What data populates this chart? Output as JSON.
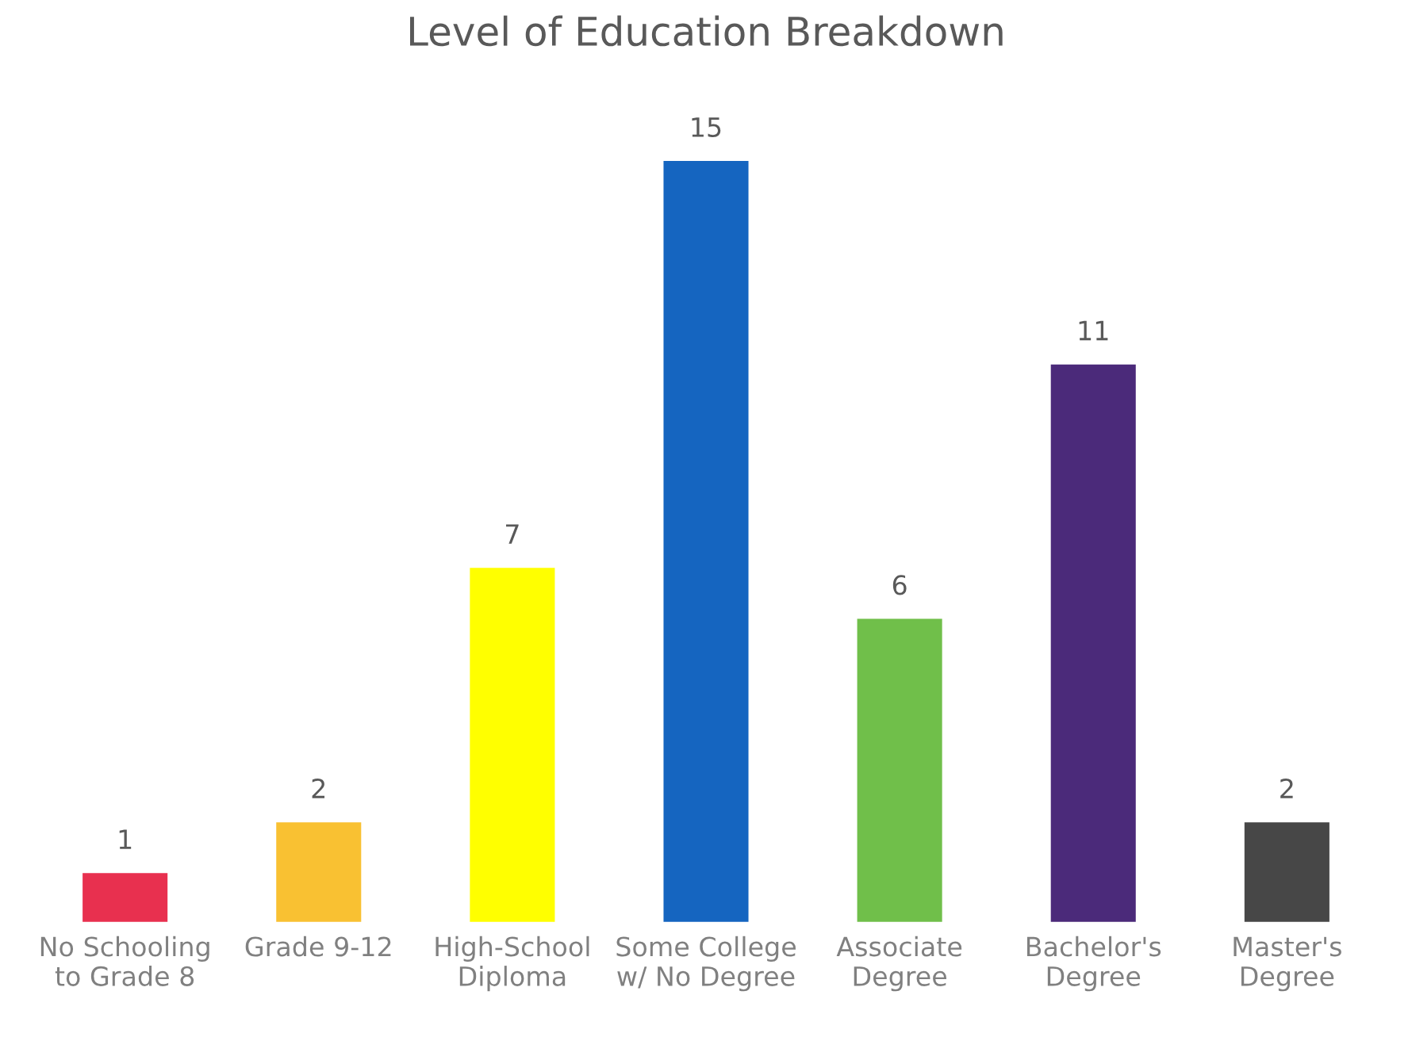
{
  "chart_data": {
    "type": "bar",
    "title": "Level of Education Breakdown",
    "categories": [
      "No Schooling\nto Grade 8",
      "Grade 9-12",
      "High-School\nDiploma",
      "Some College\nw/ No Degree",
      "Associate\nDegree",
      "Bachelor's\nDegree",
      "Master's\nDegree"
    ],
    "values": [
      1,
      2,
      7,
      15,
      6,
      11,
      2
    ],
    "colors": [
      "#e8304f",
      "#f9c132",
      "#ffff00",
      "#1565c0",
      "#70bf4a",
      "#4b2a7a",
      "#474747"
    ],
    "data_labels": true
  }
}
